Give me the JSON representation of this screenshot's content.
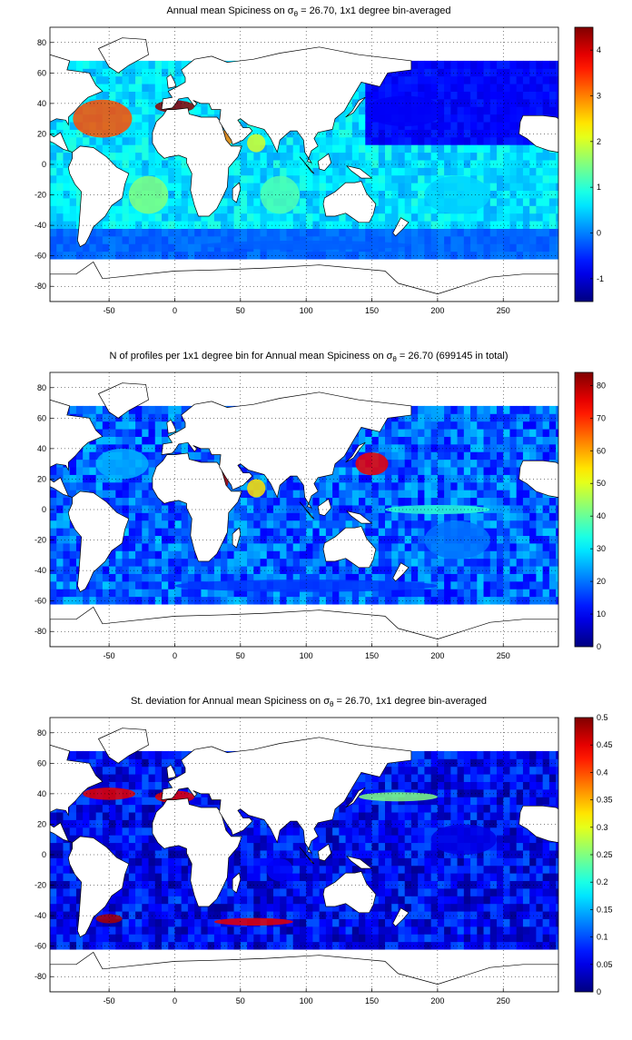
{
  "panels": [
    {
      "title_pre": "Annual mean Spiciness on σ",
      "title_sub": "θ",
      "title_post": " = 26.70, 1x1 degree bin-averaged",
      "colorbar": {
        "colormap": "jet",
        "range": [
          -1.5,
          4.5
        ],
        "ticks": [
          "-1",
          "0",
          "1",
          "2",
          "3",
          "4"
        ]
      }
    },
    {
      "title_pre": "N of profiles per 1x1 degree bin for Annual mean Spiciness on σ",
      "title_sub": "θ",
      "title_post": " = 26.70 (699145 in total)",
      "colorbar": {
        "colormap": "jet",
        "range": [
          0,
          84
        ],
        "ticks": [
          "0",
          "10",
          "20",
          "30",
          "40",
          "50",
          "60",
          "70",
          "80"
        ]
      }
    },
    {
      "title_pre": "St. deviation for Annual mean Spiciness on σ",
      "title_sub": "θ",
      "title_post": " = 26.70, 1x1 degree bin-averaged",
      "colorbar": {
        "colormap": "jet",
        "range": [
          0,
          0.5
        ],
        "ticks": [
          "0",
          "0.05",
          "0.1",
          "0.15",
          "0.2",
          "0.25",
          "0.3",
          "0.35",
          "0.4",
          "0.45",
          "0.5"
        ]
      }
    }
  ],
  "axes": {
    "xlim": [
      -95,
      292
    ],
    "ylim": [
      -90,
      90
    ],
    "x_ticks": [
      "-50",
      "0",
      "50",
      "100",
      "150",
      "200",
      "250"
    ],
    "y_ticks": [
      "80",
      "60",
      "40",
      "20",
      "0",
      "-20",
      "-40",
      "-60",
      "-80"
    ],
    "grid": "dotted"
  },
  "chart_data": [
    {
      "type": "heatmap",
      "title": "Annual mean Spiciness on σθ = 26.70, 1x1 degree bin-averaged",
      "x_range": [
        -95,
        292
      ],
      "y_range": [
        -90,
        90
      ],
      "value_range": [
        -1.5,
        4.5
      ],
      "regions": [
        {
          "region": "North Atlantic subtropical gyre",
          "value": 3.3
        },
        {
          "region": "Mediterranean outflow",
          "value": 4.4
        },
        {
          "region": "Red Sea outflow",
          "value": 3.0
        },
        {
          "region": "Arabian Sea",
          "value": 2.0
        },
        {
          "region": "South Atlantic",
          "value": 1.5
        },
        {
          "region": "Indian Ocean",
          "value": 1.2
        },
        {
          "region": "North Pacific",
          "value": -0.8
        },
        {
          "region": "South Pacific",
          "value": 0.5
        },
        {
          "region": "Southern Ocean front",
          "value": -0.2
        }
      ]
    },
    {
      "type": "heatmap",
      "title": "N of profiles per 1x1 degree bin for Annual mean Spiciness on σθ = 26.70 (699145 in total)",
      "x_range": [
        -95,
        292
      ],
      "y_range": [
        -90,
        90
      ],
      "value_range": [
        0,
        84
      ],
      "total": 699145,
      "regions": [
        {
          "region": "Kuroshio / NW Pacific",
          "value": 75
        },
        {
          "region": "Red Sea",
          "value": 80
        },
        {
          "region": "Arabian Sea",
          "value": 55
        },
        {
          "region": "Equatorial Pacific",
          "value": 35
        },
        {
          "region": "North Atlantic",
          "value": 25
        },
        {
          "region": "South Pacific",
          "value": 20
        },
        {
          "region": "Southern Ocean",
          "value": 15
        }
      ]
    },
    {
      "type": "heatmap",
      "title": "St. deviation for Annual mean Spiciness on σθ = 26.70, 1x1 degree bin-averaged",
      "x_range": [
        -95,
        292
      ],
      "y_range": [
        -90,
        90
      ],
      "value_range": [
        0,
        0.5
      ],
      "regions": [
        {
          "region": "Gulf Stream",
          "value": 0.45
        },
        {
          "region": "Mediterranean outflow",
          "value": 0.45
        },
        {
          "region": "Brazil-Malvinas confluence",
          "value": 0.48
        },
        {
          "region": "Agulhas retroflection / ACC",
          "value": 0.45
        },
        {
          "region": "Kuroshio extension",
          "value": 0.25
        },
        {
          "region": "Open Pacific",
          "value": 0.05
        },
        {
          "region": "Open Indian Ocean",
          "value": 0.06
        }
      ]
    }
  ]
}
